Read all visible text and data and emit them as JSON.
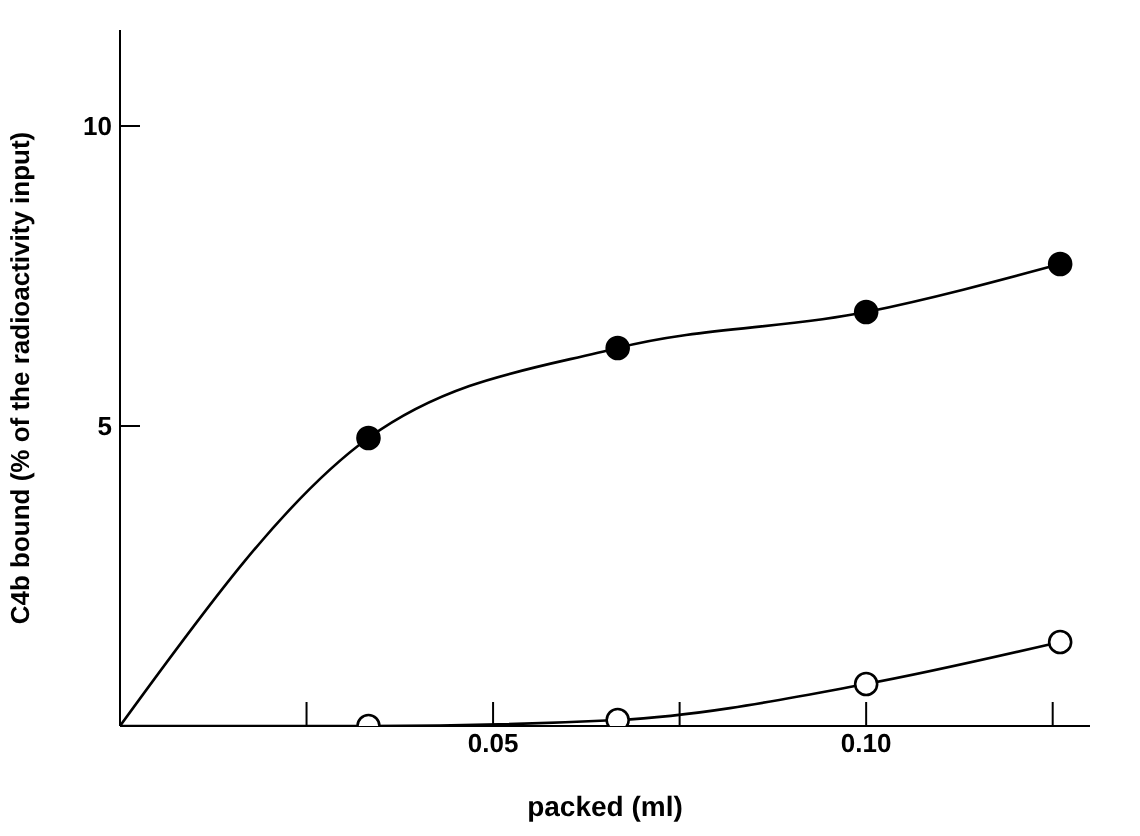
{
  "chart_data": {
    "type": "line",
    "xlabel": "packed (ml)",
    "ylabel": "C4b bound (% of the radioactivity input)",
    "xlim": [
      0,
      0.13
    ],
    "ylim": [
      0,
      11.6
    ],
    "xticks": [
      {
        "value": 0.025,
        "label": null
      },
      {
        "value": 0.05,
        "label": "0.05"
      },
      {
        "value": 0.075,
        "label": null
      },
      {
        "value": 0.1,
        "label": "0.10"
      },
      {
        "value": 0.125,
        "label": null
      }
    ],
    "yticks": [
      5,
      10
    ],
    "x": [
      0,
      0.0333,
      0.0667,
      0.1,
      0.126
    ],
    "series": [
      {
        "color": "#000000",
        "values": [
          0,
          4.8,
          6.3,
          6.9,
          7.7
        ]
      },
      {
        "color": "#000000",
        "values": [
          0,
          0,
          0.1,
          0.7,
          1.4
        ]
      }
    ],
    "marker": "circle"
  }
}
